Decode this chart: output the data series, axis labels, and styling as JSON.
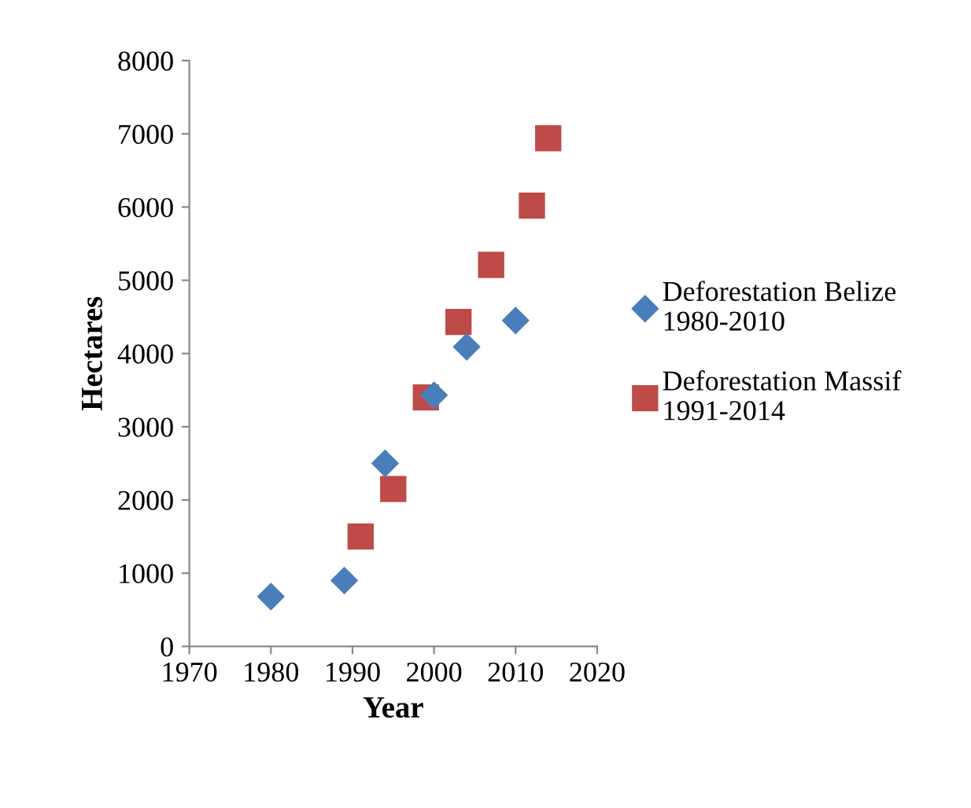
{
  "chart_data": {
    "type": "scatter",
    "xlabel": "Year",
    "ylabel": "Hectares",
    "series": [
      {
        "name": "Deforestation Belize\n1980-2010",
        "color": "#4a7ebb",
        "marker": "diamond",
        "x": [
          1980,
          1989,
          1994,
          2000,
          2004,
          2010
        ],
        "values": [
          680,
          900,
          2500,
          3430,
          4090,
          4450
        ]
      },
      {
        "name": "Deforestation Massif\n1991-2014",
        "color": "#be4b48",
        "marker": "square",
        "x": [
          1991,
          1995,
          1999,
          2003,
          2007,
          2012,
          2014
        ],
        "values": [
          1500,
          2150,
          3400,
          4430,
          5210,
          6020,
          6940
        ]
      }
    ],
    "xlim": [
      1970,
      2020
    ],
    "xticks": [
      1970,
      1980,
      1990,
      2000,
      2010,
      2020
    ],
    "ylim": [
      0,
      8000
    ],
    "yticks": [
      0,
      1000,
      2000,
      3000,
      4000,
      5000,
      6000,
      7000,
      8000
    ],
    "grid": false,
    "legend": "right"
  }
}
